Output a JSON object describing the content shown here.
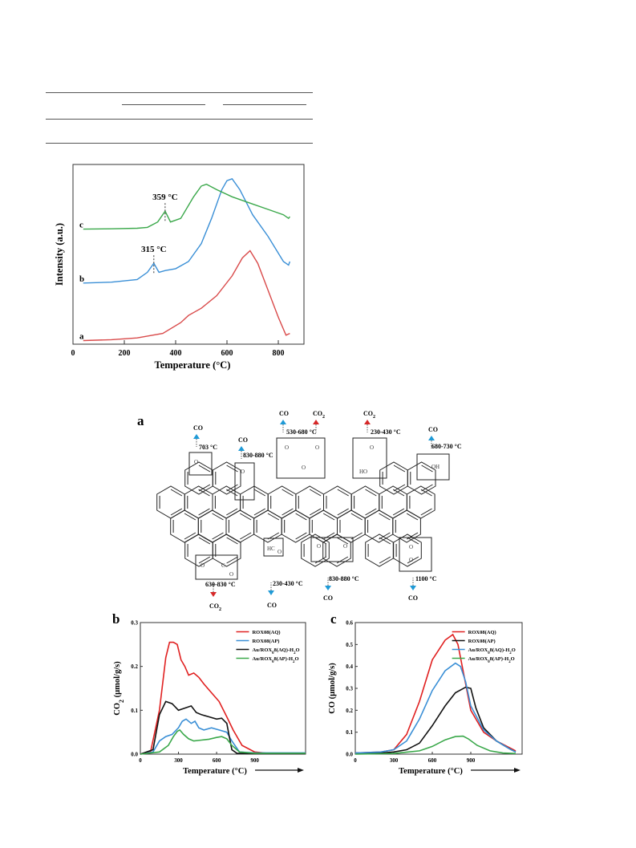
{
  "table_stub": {
    "note": ""
  },
  "tpd_figure": {
    "chart_data": {
      "type": "line",
      "xlabel": "Temperature (°C)",
      "ylabel": "Intensity (a.u.)",
      "xlim": [
        0,
        900
      ],
      "x_ticks": [
        "0",
        "200",
        "400",
        "600",
        "800"
      ],
      "series": [
        {
          "label": "a",
          "color": "#d94a4a",
          "x": [
            40,
            150,
            250,
            350,
            420,
            450,
            500,
            560,
            620,
            660,
            690,
            720,
            760,
            800,
            830,
            845
          ],
          "y": [
            0.02,
            0.025,
            0.035,
            0.06,
            0.12,
            0.16,
            0.2,
            0.27,
            0.38,
            0.48,
            0.52,
            0.45,
            0.3,
            0.15,
            0.05,
            0.06
          ]
        },
        {
          "label": "b",
          "color": "#3a8fd6",
          "x": [
            40,
            150,
            250,
            290,
            315,
            335,
            360,
            400,
            450,
            500,
            540,
            580,
            600,
            620,
            650,
            700,
            760,
            820,
            840,
            845
          ],
          "y": [
            0.34,
            0.345,
            0.36,
            0.4,
            0.45,
            0.4,
            0.41,
            0.42,
            0.46,
            0.56,
            0.7,
            0.86,
            0.91,
            0.92,
            0.86,
            0.72,
            0.6,
            0.46,
            0.44,
            0.46
          ]
        },
        {
          "label": "c",
          "color": "#3aa84a",
          "x": [
            40,
            150,
            250,
            290,
            330,
            359,
            380,
            420,
            470,
            500,
            520,
            560,
            620,
            700,
            760,
            820,
            840,
            845
          ],
          "y": [
            0.64,
            0.642,
            0.645,
            0.65,
            0.68,
            0.74,
            0.68,
            0.7,
            0.82,
            0.88,
            0.89,
            0.86,
            0.82,
            0.78,
            0.75,
            0.72,
            0.7,
            0.71
          ]
        }
      ],
      "annotations": [
        {
          "text": "359 °C",
          "x": 359,
          "series": "c"
        },
        {
          "text": "315 °C",
          "x": 315,
          "series": "b"
        }
      ]
    }
  },
  "scheme": {
    "panel_label": "a",
    "labels": [
      {
        "gas": "CO",
        "temp": "703 °C",
        "arrow_color": "#1f9ad6"
      },
      {
        "gas": "CO",
        "temp": "830-880 °C",
        "arrow_color": "#1f9ad6"
      },
      {
        "gas": "CO",
        "temp": "530-680 °C",
        "arrow_color": "#1f9ad6"
      },
      {
        "gas": "CO2",
        "temp": "",
        "arrow_color": "#d62828"
      },
      {
        "gas": "CO2",
        "temp": "230-430 °C",
        "arrow_color": "#d62828"
      },
      {
        "gas": "CO",
        "temp": "680-730 °C",
        "arrow_color": "#1f9ad6"
      },
      {
        "gas": "CO2",
        "temp": "630-830 °C",
        "arrow_color": "#d62828"
      },
      {
        "gas": "CO",
        "temp": "230-430 °C",
        "arrow_color": "#1f9ad6"
      },
      {
        "gas": "CO",
        "temp": "830-880 °C",
        "arrow_color": "#1f9ad6"
      },
      {
        "gas": "CO",
        "temp": "1100 °C",
        "arrow_color": "#1f9ad6"
      }
    ],
    "atom_labels": [
      "O",
      "O",
      "O",
      "O",
      "O",
      "HO",
      "O",
      "OH",
      "O",
      "C",
      "O",
      "HC",
      "O",
      "O",
      "O",
      "O",
      "O"
    ]
  },
  "co2_panel": {
    "panel_label": "b",
    "chart_data": {
      "type": "line",
      "xlabel": "Temperature (°C)",
      "ylabel": "CO2 (µmol/g/s)",
      "xlim": [
        0,
        1300
      ],
      "ylim": [
        0,
        0.3
      ],
      "x_ticks": [
        "0",
        "300",
        "600",
        "900"
      ],
      "y_ticks": [
        "0.0",
        "0.1",
        "0.2",
        "0.3"
      ],
      "series": [
        {
          "name": "ROX08(AQ)",
          "color": "#e02020",
          "x": [
            0,
            80,
            150,
            200,
            230,
            260,
            290,
            320,
            350,
            380,
            420,
            460,
            500,
            560,
            620,
            680,
            730,
            800,
            900,
            1000,
            1300
          ],
          "y": [
            0,
            0.005,
            0.1,
            0.22,
            0.255,
            0.255,
            0.25,
            0.215,
            0.2,
            0.18,
            0.185,
            0.175,
            0.16,
            0.14,
            0.12,
            0.085,
            0.055,
            0.02,
            0.005,
            0.002,
            0.002
          ]
        },
        {
          "name": "ROX08(AP)",
          "color": "#3a8fd6",
          "x": [
            0,
            100,
            150,
            200,
            250,
            300,
            330,
            360,
            400,
            430,
            460,
            500,
            560,
            620,
            680,
            720,
            780,
            900,
            1300
          ],
          "y": [
            0,
            0.005,
            0.03,
            0.04,
            0.045,
            0.06,
            0.075,
            0.08,
            0.07,
            0.075,
            0.06,
            0.055,
            0.06,
            0.055,
            0.05,
            0.03,
            0.005,
            0.003,
            0.003
          ]
        },
        {
          "name": "Au/ROX08(AQ)-H2O",
          "color": "#111111",
          "x": [
            0,
            100,
            150,
            200,
            250,
            300,
            350,
            400,
            440,
            480,
            540,
            600,
            640,
            680,
            700,
            720,
            760,
            900,
            1300
          ],
          "y": [
            0,
            0.01,
            0.09,
            0.12,
            0.115,
            0.1,
            0.105,
            0.11,
            0.095,
            0.09,
            0.085,
            0.08,
            0.082,
            0.07,
            0.04,
            0.01,
            0.002,
            0.001,
            0.001
          ]
        },
        {
          "name": "Au/ROX08(AP)-H2O",
          "color": "#3aa84a",
          "x": [
            0,
            150,
            220,
            260,
            290,
            310,
            340,
            380,
            420,
            480,
            540,
            600,
            640,
            680,
            720,
            780,
            900,
            1300
          ],
          "y": [
            0,
            0.005,
            0.02,
            0.04,
            0.052,
            0.055,
            0.045,
            0.035,
            0.03,
            0.032,
            0.034,
            0.038,
            0.04,
            0.035,
            0.02,
            0.005,
            0.002,
            0.002
          ]
        }
      ],
      "legend": "top-right"
    }
  },
  "co_panel": {
    "panel_label": "c",
    "chart_data": {
      "type": "line",
      "xlabel": "Temperature (°C)",
      "ylabel": "CO (µmol/g/s)",
      "xlim": [
        0,
        1300
      ],
      "ylim": [
        0,
        0.6
      ],
      "x_ticks": [
        "0",
        "300",
        "600",
        "900"
      ],
      "y_ticks": [
        "0.0",
        "0.1",
        "0.2",
        "0.3",
        "0.4",
        "0.5",
        "0.6"
      ],
      "series": [
        {
          "name": "ROX08(AQ)",
          "color": "#e02020",
          "x": [
            0,
            200,
            300,
            400,
            500,
            600,
            700,
            760,
            800,
            850,
            900,
            1000,
            1100,
            1200,
            1250
          ],
          "y": [
            0.005,
            0.01,
            0.02,
            0.09,
            0.24,
            0.43,
            0.52,
            0.545,
            0.5,
            0.35,
            0.2,
            0.1,
            0.06,
            0.03,
            0.015
          ]
        },
        {
          "name": "ROX08(AP)",
          "color": "#111111",
          "x": [
            0,
            200,
            300,
            400,
            500,
            600,
            700,
            780,
            860,
            900,
            940,
            1000,
            1100,
            1200,
            1250
          ],
          "y": [
            0.005,
            0.005,
            0.01,
            0.02,
            0.05,
            0.13,
            0.22,
            0.28,
            0.305,
            0.3,
            0.21,
            0.12,
            0.06,
            0.025,
            0.01
          ]
        },
        {
          "name": "Au/ROX08(AQ)-H2O",
          "color": "#3a8fd6",
          "x": [
            0,
            200,
            300,
            400,
            500,
            600,
            700,
            780,
            820,
            860,
            900,
            1000,
            1100,
            1200,
            1250
          ],
          "y": [
            0.005,
            0.01,
            0.02,
            0.06,
            0.16,
            0.29,
            0.38,
            0.415,
            0.4,
            0.33,
            0.22,
            0.11,
            0.06,
            0.025,
            0.01
          ]
        },
        {
          "name": "Au/ROX08(AP)-H2O",
          "color": "#3aa84a",
          "x": [
            0,
            300,
            500,
            600,
            700,
            780,
            840,
            880,
            950,
            1050,
            1150,
            1250
          ],
          "y": [
            0,
            0.003,
            0.015,
            0.035,
            0.065,
            0.08,
            0.082,
            0.07,
            0.04,
            0.015,
            0.005,
            0.003
          ]
        }
      ],
      "legend": "top-right"
    }
  }
}
